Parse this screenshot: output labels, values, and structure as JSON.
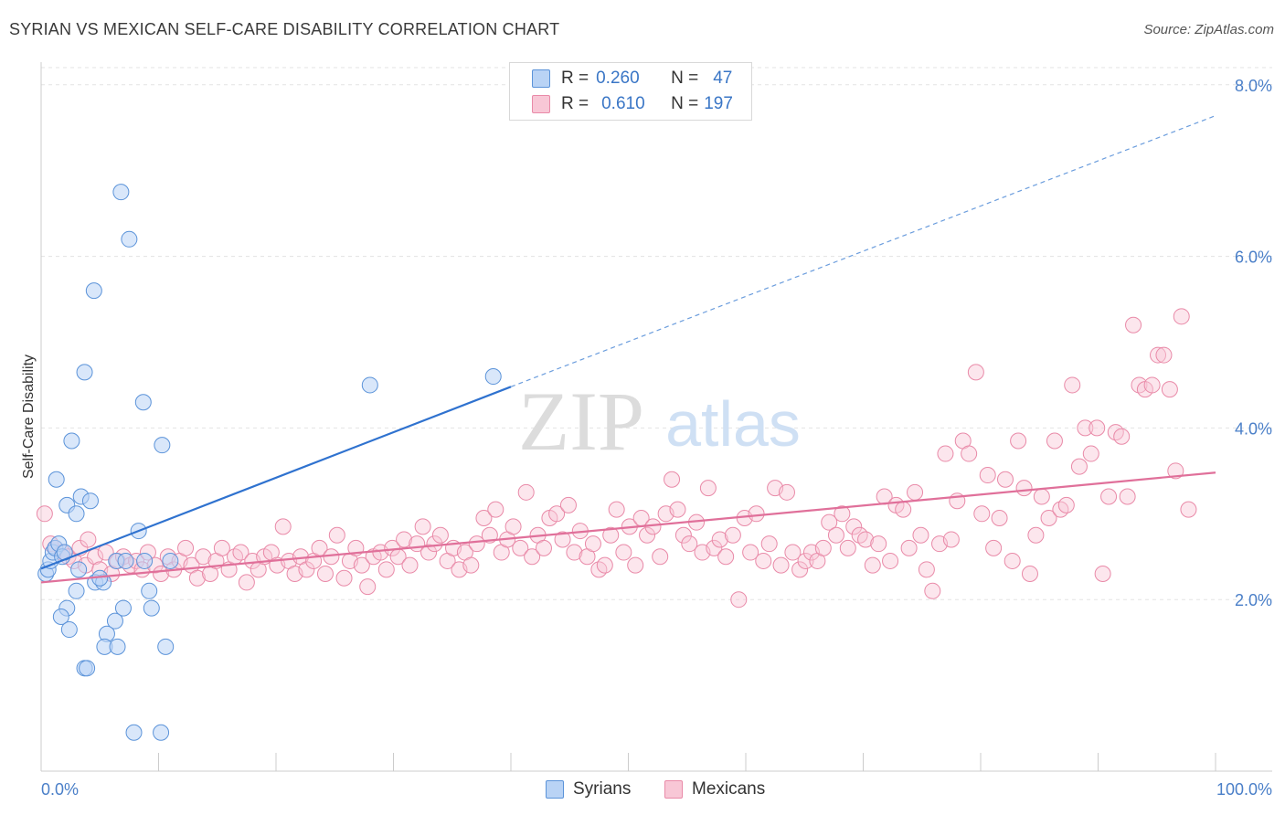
{
  "header": {
    "title": "SYRIAN VS MEXICAN SELF-CARE DISABILITY CORRELATION CHART",
    "source": "Source: ZipAtlas.com"
  },
  "watermark": {
    "zip": "ZIP",
    "atlas": "atlas"
  },
  "legend_top": {
    "rows": [
      {
        "r_label": "R =",
        "r_value": "0.260",
        "n_label": "N =",
        "n_value": "47",
        "color": "#5b93d9"
      },
      {
        "r_label": "R =",
        "r_value": "0.610",
        "n_label": "N =",
        "n_value": "197",
        "color": "#e98aa8"
      }
    ]
  },
  "legend_bottom": {
    "syrians": "Syrians",
    "mexicans": "Mexicans"
  },
  "chart_data": {
    "type": "scatter",
    "title": "SYRIAN VS MEXICAN SELF-CARE DISABILITY CORRELATION CHART",
    "ylabel": "Self-Care Disability",
    "xlabel": "",
    "xlim": [
      0,
      100
    ],
    "ylim": [
      0,
      8.2
    ],
    "x_tick_labels": [
      "0.0%",
      "100.0%"
    ],
    "y_ticks": [
      2.0,
      4.0,
      6.0,
      8.0
    ],
    "y_tick_labels": [
      "2.0%",
      "4.0%",
      "6.0%",
      "8.0%"
    ],
    "grid": true,
    "legend_position": "top-center",
    "series": [
      {
        "name": "Syrians",
        "color": "#5b93d9",
        "fill": "#b9d3f5",
        "r": 0.26,
        "n": 47,
        "trend": {
          "x0": 0,
          "y0": 2.36,
          "x1": 40,
          "y1": 4.48,
          "dashed_to_x": 100,
          "dashed_to_y": 7.64
        },
        "points": [
          [
            0.4,
            2.3
          ],
          [
            0.6,
            2.35
          ],
          [
            0.8,
            2.45
          ],
          [
            1.0,
            2.55
          ],
          [
            1.2,
            2.6
          ],
          [
            1.5,
            2.65
          ],
          [
            1.8,
            2.5
          ],
          [
            2.0,
            2.55
          ],
          [
            1.3,
            3.4
          ],
          [
            2.2,
            3.1
          ],
          [
            3.0,
            3.0
          ],
          [
            3.4,
            3.2
          ],
          [
            4.2,
            3.15
          ],
          [
            2.6,
            3.85
          ],
          [
            3.7,
            4.65
          ],
          [
            4.5,
            5.6
          ],
          [
            6.8,
            6.75
          ],
          [
            7.5,
            6.2
          ],
          [
            8.7,
            4.3
          ],
          [
            10.3,
            3.8
          ],
          [
            28.0,
            4.5
          ],
          [
            38.5,
            4.6
          ],
          [
            3.2,
            2.35
          ],
          [
            4.6,
            2.2
          ],
          [
            5.3,
            2.2
          ],
          [
            5.0,
            2.25
          ],
          [
            6.4,
            2.45
          ],
          [
            7.2,
            2.45
          ],
          [
            8.8,
            2.45
          ],
          [
            11.0,
            2.45
          ],
          [
            8.3,
            2.8
          ],
          [
            3.0,
            2.1
          ],
          [
            2.2,
            1.9
          ],
          [
            1.7,
            1.8
          ],
          [
            2.4,
            1.65
          ],
          [
            7.0,
            1.9
          ],
          [
            9.2,
            2.1
          ],
          [
            9.4,
            1.9
          ],
          [
            6.3,
            1.75
          ],
          [
            5.6,
            1.6
          ],
          [
            5.4,
            1.45
          ],
          [
            6.5,
            1.45
          ],
          [
            10.6,
            1.45
          ],
          [
            3.7,
            1.2
          ],
          [
            3.9,
            1.2
          ],
          [
            7.9,
            0.45
          ],
          [
            10.2,
            0.45
          ]
        ]
      },
      {
        "name": "Mexicans",
        "color": "#e98aa8",
        "fill": "#f8c7d6",
        "r": 0.61,
        "n": 197,
        "trend": {
          "x0": 0,
          "y0": 2.2,
          "x1": 100,
          "y1": 3.48
        },
        "points": [
          [
            0.3,
            3.0
          ],
          [
            0.8,
            2.65
          ],
          [
            1.2,
            2.6
          ],
          [
            1.8,
            2.55
          ],
          [
            2.3,
            2.5
          ],
          [
            2.8,
            2.45
          ],
          [
            3.3,
            2.6
          ],
          [
            3.8,
            2.4
          ],
          [
            4.0,
            2.7
          ],
          [
            4.6,
            2.5
          ],
          [
            5.0,
            2.35
          ],
          [
            5.5,
            2.55
          ],
          [
            6.0,
            2.3
          ],
          [
            6.5,
            2.45
          ],
          [
            7.0,
            2.5
          ],
          [
            7.6,
            2.4
          ],
          [
            8.1,
            2.45
          ],
          [
            8.6,
            2.35
          ],
          [
            9.1,
            2.55
          ],
          [
            9.7,
            2.4
          ],
          [
            10.2,
            2.3
          ],
          [
            10.8,
            2.5
          ],
          [
            11.3,
            2.35
          ],
          [
            11.8,
            2.45
          ],
          [
            12.3,
            2.6
          ],
          [
            12.8,
            2.4
          ],
          [
            13.3,
            2.25
          ],
          [
            13.8,
            2.5
          ],
          [
            14.4,
            2.3
          ],
          [
            14.9,
            2.45
          ],
          [
            15.4,
            2.6
          ],
          [
            16.0,
            2.35
          ],
          [
            16.5,
            2.5
          ],
          [
            17.0,
            2.55
          ],
          [
            17.5,
            2.2
          ],
          [
            18.0,
            2.45
          ],
          [
            18.5,
            2.35
          ],
          [
            19.0,
            2.5
          ],
          [
            19.6,
            2.55
          ],
          [
            20.1,
            2.4
          ],
          [
            20.6,
            2.85
          ],
          [
            21.1,
            2.45
          ],
          [
            21.6,
            2.3
          ],
          [
            22.1,
            2.5
          ],
          [
            22.6,
            2.35
          ],
          [
            23.2,
            2.45
          ],
          [
            23.7,
            2.6
          ],
          [
            24.2,
            2.3
          ],
          [
            24.7,
            2.5
          ],
          [
            25.2,
            2.75
          ],
          [
            25.8,
            2.25
          ],
          [
            26.3,
            2.45
          ],
          [
            26.8,
            2.6
          ],
          [
            27.3,
            2.4
          ],
          [
            27.8,
            2.15
          ],
          [
            28.3,
            2.5
          ],
          [
            28.9,
            2.55
          ],
          [
            29.4,
            2.35
          ],
          [
            29.9,
            2.6
          ],
          [
            30.4,
            2.5
          ],
          [
            30.9,
            2.7
          ],
          [
            31.4,
            2.4
          ],
          [
            32.0,
            2.65
          ],
          [
            32.5,
            2.85
          ],
          [
            33.0,
            2.55
          ],
          [
            33.5,
            2.65
          ],
          [
            34.0,
            2.75
          ],
          [
            34.6,
            2.45
          ],
          [
            35.1,
            2.6
          ],
          [
            35.6,
            2.35
          ],
          [
            36.1,
            2.55
          ],
          [
            36.6,
            2.4
          ],
          [
            37.1,
            2.65
          ],
          [
            37.7,
            2.95
          ],
          [
            38.2,
            2.75
          ],
          [
            38.7,
            3.05
          ],
          [
            39.2,
            2.55
          ],
          [
            39.7,
            2.7
          ],
          [
            40.2,
            2.85
          ],
          [
            40.8,
            2.6
          ],
          [
            41.3,
            3.25
          ],
          [
            41.8,
            2.5
          ],
          [
            42.3,
            2.75
          ],
          [
            42.8,
            2.6
          ],
          [
            43.3,
            2.95
          ],
          [
            43.9,
            3.0
          ],
          [
            44.4,
            2.7
          ],
          [
            44.9,
            3.1
          ],
          [
            45.4,
            2.55
          ],
          [
            45.9,
            2.8
          ],
          [
            46.5,
            2.5
          ],
          [
            47.0,
            2.65
          ],
          [
            47.5,
            2.35
          ],
          [
            48.0,
            2.4
          ],
          [
            48.5,
            2.75
          ],
          [
            49.0,
            3.05
          ],
          [
            49.6,
            2.55
          ],
          [
            50.1,
            2.85
          ],
          [
            50.6,
            2.4
          ],
          [
            51.1,
            2.95
          ],
          [
            51.6,
            2.75
          ],
          [
            52.1,
            2.85
          ],
          [
            52.7,
            2.5
          ],
          [
            53.2,
            3.0
          ],
          [
            53.7,
            3.4
          ],
          [
            54.2,
            3.05
          ],
          [
            54.7,
            2.75
          ],
          [
            55.2,
            2.65
          ],
          [
            55.8,
            2.9
          ],
          [
            56.3,
            2.55
          ],
          [
            56.8,
            3.3
          ],
          [
            57.3,
            2.6
          ],
          [
            57.8,
            2.7
          ],
          [
            58.3,
            2.5
          ],
          [
            58.9,
            2.75
          ],
          [
            59.4,
            2.0
          ],
          [
            59.9,
            2.95
          ],
          [
            60.4,
            2.55
          ],
          [
            60.9,
            3.0
          ],
          [
            61.5,
            2.45
          ],
          [
            62.0,
            2.65
          ],
          [
            62.5,
            3.3
          ],
          [
            63.0,
            2.4
          ],
          [
            63.5,
            3.25
          ],
          [
            64.0,
            2.55
          ],
          [
            64.6,
            2.35
          ],
          [
            65.1,
            2.45
          ],
          [
            65.6,
            2.55
          ],
          [
            66.1,
            2.45
          ],
          [
            66.6,
            2.6
          ],
          [
            67.1,
            2.9
          ],
          [
            67.7,
            2.75
          ],
          [
            68.2,
            3.0
          ],
          [
            68.7,
            2.6
          ],
          [
            69.2,
            2.85
          ],
          [
            69.7,
            2.75
          ],
          [
            70.2,
            2.7
          ],
          [
            70.8,
            2.4
          ],
          [
            71.3,
            2.65
          ],
          [
            71.8,
            3.2
          ],
          [
            72.3,
            2.45
          ],
          [
            72.8,
            3.1
          ],
          [
            73.4,
            3.05
          ],
          [
            73.9,
            2.6
          ],
          [
            74.4,
            3.25
          ],
          [
            74.9,
            2.75
          ],
          [
            75.4,
            2.35
          ],
          [
            75.9,
            2.1
          ],
          [
            76.5,
            2.65
          ],
          [
            77.0,
            3.7
          ],
          [
            77.5,
            2.7
          ],
          [
            78.0,
            3.15
          ],
          [
            78.5,
            3.85
          ],
          [
            79.0,
            3.7
          ],
          [
            79.6,
            4.65
          ],
          [
            80.1,
            3.0
          ],
          [
            80.6,
            3.45
          ],
          [
            81.1,
            2.6
          ],
          [
            81.6,
            2.95
          ],
          [
            82.1,
            3.4
          ],
          [
            82.7,
            2.45
          ],
          [
            83.2,
            3.85
          ],
          [
            83.7,
            3.3
          ],
          [
            84.2,
            2.3
          ],
          [
            84.7,
            2.75
          ],
          [
            85.2,
            3.2
          ],
          [
            85.8,
            2.95
          ],
          [
            86.3,
            3.85
          ],
          [
            86.8,
            3.05
          ],
          [
            87.3,
            3.1
          ],
          [
            87.8,
            4.5
          ],
          [
            88.4,
            3.55
          ],
          [
            88.9,
            4.0
          ],
          [
            89.4,
            3.7
          ],
          [
            89.9,
            4.0
          ],
          [
            90.4,
            2.3
          ],
          [
            90.9,
            3.2
          ],
          [
            91.5,
            3.95
          ],
          [
            92.0,
            3.9
          ],
          [
            92.5,
            3.2
          ],
          [
            93.0,
            5.2
          ],
          [
            93.5,
            4.5
          ],
          [
            94.0,
            4.45
          ],
          [
            94.6,
            4.5
          ],
          [
            95.1,
            4.85
          ],
          [
            95.6,
            4.85
          ],
          [
            96.1,
            4.45
          ],
          [
            96.6,
            3.5
          ],
          [
            97.1,
            5.3
          ],
          [
            97.7,
            3.05
          ]
        ]
      }
    ]
  }
}
